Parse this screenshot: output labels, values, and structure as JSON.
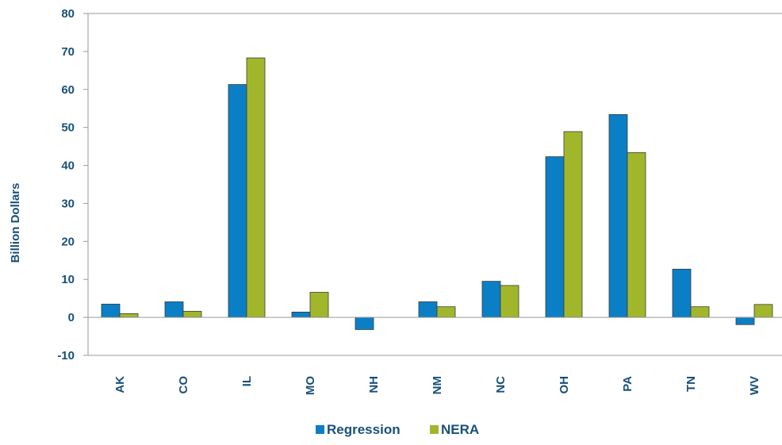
{
  "chart_data": {
    "type": "bar",
    "title": "",
    "xlabel": "",
    "ylabel": "Billion Dollars",
    "ylim": [
      -10,
      80
    ],
    "yticks": [
      -10,
      0,
      10,
      20,
      30,
      40,
      50,
      60,
      70,
      80
    ],
    "grid": false,
    "legend_position": "bottom",
    "categories": [
      "AK",
      "CO",
      "IL",
      "MO",
      "NH",
      "NM",
      "NC",
      "OH",
      "PA",
      "TN",
      "WV"
    ],
    "series": [
      {
        "name": "Regression",
        "color": "#0a7fc6",
        "values": [
          3.5,
          4.1,
          61.3,
          1.4,
          -3.2,
          4.1,
          9.5,
          42.3,
          53.4,
          12.7,
          -1.9
        ]
      },
      {
        "name": "NERA",
        "color": "#a2b62b",
        "values": [
          1.0,
          1.6,
          68.3,
          6.6,
          0.0,
          2.8,
          8.4,
          48.9,
          43.4,
          2.8,
          3.4
        ]
      }
    ]
  }
}
